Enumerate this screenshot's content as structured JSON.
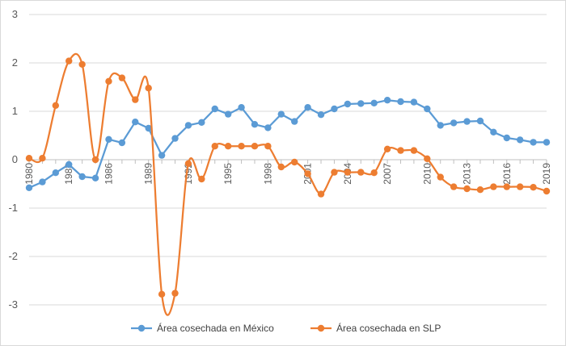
{
  "chart_data": {
    "type": "line",
    "title": "",
    "xlabel": "",
    "ylabel": "",
    "ylim": [
      -3,
      3
    ],
    "yticks": [
      3,
      2,
      1,
      0,
      -1,
      -2,
      -3
    ],
    "x_tick_labels": [
      "1980",
      "1983",
      "1986",
      "1989",
      "1992",
      "1995",
      "1998",
      "2001",
      "2004",
      "2007",
      "2010",
      "2013",
      "2016",
      "2019"
    ],
    "grid": "horizontal",
    "legend_position": "bottom",
    "x": [
      1980,
      1981,
      1982,
      1983,
      1984,
      1985,
      1986,
      1987,
      1988,
      1989,
      1990,
      1991,
      1992,
      1993,
      1994,
      1995,
      1996,
      1997,
      1998,
      1999,
      2000,
      2001,
      2002,
      2003,
      2004,
      2005,
      2006,
      2007,
      2008,
      2009,
      2010,
      2011,
      2012,
      2013,
      2014,
      2015,
      2016,
      2017,
      2018,
      2019
    ],
    "series": [
      {
        "name": "Área cosechada en México",
        "color": "#5b9bd5",
        "smooth": false,
        "values": [
          -0.58,
          -0.46,
          -0.27,
          -0.1,
          -0.35,
          -0.38,
          0.42,
          0.35,
          0.78,
          0.65,
          0.09,
          0.44,
          0.71,
          0.77,
          1.05,
          0.94,
          1.08,
          0.73,
          0.66,
          0.94,
          0.79,
          1.08,
          0.93,
          1.05,
          1.15,
          1.16,
          1.17,
          1.23,
          1.2,
          1.19,
          1.05,
          0.71,
          0.76,
          0.79,
          0.8,
          0.57,
          0.45,
          0.41,
          0.36,
          0.36
        ]
      },
      {
        "name": "Área cosechada en SLP",
        "color": "#ed7d31",
        "smooth": true,
        "values": [
          0.03,
          0.03,
          1.12,
          2.04,
          1.97,
          0.0,
          1.62,
          1.69,
          1.24,
          1.48,
          -2.78,
          -2.76,
          -0.08,
          -0.4,
          0.28,
          0.28,
          0.28,
          0.28,
          0.28,
          -0.15,
          -0.05,
          -0.29,
          -0.71,
          -0.26,
          -0.26,
          -0.26,
          -0.27,
          0.22,
          0.19,
          0.19,
          0.02,
          -0.36,
          -0.56,
          -0.6,
          -0.62,
          -0.56,
          -0.56,
          -0.56,
          -0.57,
          -0.65
        ]
      }
    ]
  }
}
